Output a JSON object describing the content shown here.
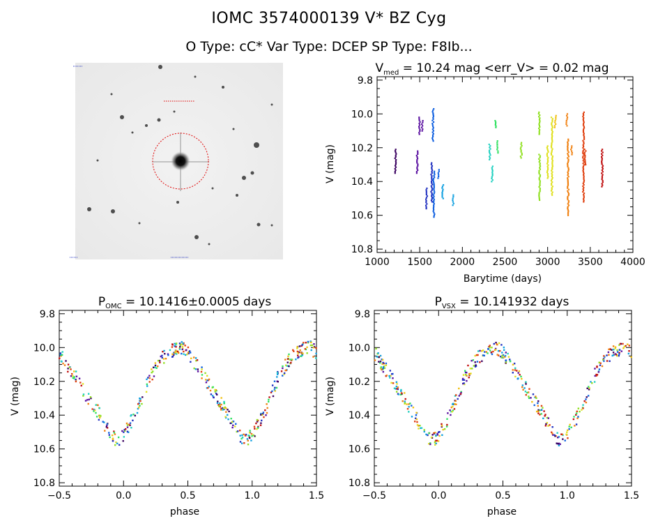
{
  "header": {
    "line1": "IOMC 3574000139    V* BZ Cyg",
    "line2": "O Type: cC*   Var Type: DCEP   SP Type: F8Ib..."
  },
  "sky_image": {
    "caption_top": "",
    "caption_bottom": ""
  },
  "colors": {
    "palette": [
      "#3a0060",
      "#5a10a0",
      "#2030c0",
      "#1060e0",
      "#10a0e0",
      "#20d0c0",
      "#30e060",
      "#90e020",
      "#e0e020",
      "#f0c010",
      "#f08010",
      "#e04010",
      "#c01010"
    ]
  },
  "chart_data": [
    {
      "type": "scatter",
      "id": "lightcurve",
      "title_main": "V",
      "title_sub": "med",
      "title_rest": " = 10.24 mag <err_V> = 0.02 mag",
      "xlabel": "Barytime (days)",
      "ylabel": "V (mag)",
      "xlim": [
        1000,
        4000
      ],
      "ylim": [
        10.82,
        9.78
      ],
      "xticks": [
        1000,
        1500,
        2000,
        2500,
        3000,
        3500,
        4000
      ],
      "xtick_labels": [
        "1000",
        "1500",
        "2000",
        "2500",
        "3000",
        "3500",
        "4000"
      ],
      "yticks": [
        9.8,
        10.0,
        10.2,
        10.4,
        10.6,
        10.8
      ],
      "ytick_labels": [
        "9.8",
        "10.0",
        "10.2",
        "10.4",
        "10.6",
        "10.8"
      ],
      "clusters": [
        {
          "t": 1215,
          "ymin": 10.21,
          "ymax": 10.35,
          "c": 0
        },
        {
          "t": 1470,
          "ymin": 10.22,
          "ymax": 10.35,
          "c": 1
        },
        {
          "t": 1495,
          "ymin": 10.02,
          "ymax": 10.12,
          "c": 1
        },
        {
          "t": 1530,
          "ymin": 10.04,
          "ymax": 10.1,
          "c": 1
        },
        {
          "t": 1580,
          "ymin": 10.44,
          "ymax": 10.56,
          "c": 2
        },
        {
          "t": 1640,
          "ymin": 10.29,
          "ymax": 10.52,
          "c": 2
        },
        {
          "t": 1655,
          "ymin": 9.97,
          "ymax": 10.16,
          "c": 3
        },
        {
          "t": 1665,
          "ymin": 10.34,
          "ymax": 10.61,
          "c": 3
        },
        {
          "t": 1720,
          "ymin": 10.33,
          "ymax": 10.38,
          "c": 3
        },
        {
          "t": 1770,
          "ymin": 10.42,
          "ymax": 10.5,
          "c": 4
        },
        {
          "t": 1890,
          "ymin": 10.48,
          "ymax": 10.54,
          "c": 4
        },
        {
          "t": 2320,
          "ymin": 10.18,
          "ymax": 10.27,
          "c": 5
        },
        {
          "t": 2350,
          "ymin": 10.31,
          "ymax": 10.4,
          "c": 5
        },
        {
          "t": 2390,
          "ymin": 10.04,
          "ymax": 10.08,
          "c": 6
        },
        {
          "t": 2410,
          "ymin": 10.16,
          "ymax": 10.23,
          "c": 6
        },
        {
          "t": 2690,
          "ymin": 10.17,
          "ymax": 10.26,
          "c": 7
        },
        {
          "t": 2900,
          "ymin": 9.99,
          "ymax": 10.12,
          "c": 7
        },
        {
          "t": 2905,
          "ymin": 10.24,
          "ymax": 10.51,
          "c": 7
        },
        {
          "t": 3000,
          "ymin": 10.19,
          "ymax": 10.38,
          "c": 8
        },
        {
          "t": 3050,
          "ymin": 10.02,
          "ymax": 10.48,
          "c": 8
        },
        {
          "t": 3090,
          "ymin": 10.01,
          "ymax": 10.08,
          "c": 9
        },
        {
          "t": 3225,
          "ymin": 10.0,
          "ymax": 10.07,
          "c": 10
        },
        {
          "t": 3240,
          "ymin": 10.15,
          "ymax": 10.6,
          "c": 10
        },
        {
          "t": 3280,
          "ymin": 10.19,
          "ymax": 10.24,
          "c": 10
        },
        {
          "t": 3420,
          "ymin": 9.99,
          "ymax": 10.52,
          "c": 11
        },
        {
          "t": 3440,
          "ymin": 10.21,
          "ymax": 10.3,
          "c": 11
        },
        {
          "t": 3640,
          "ymin": 10.21,
          "ymax": 10.43,
          "c": 12
        }
      ]
    },
    {
      "type": "scatter",
      "id": "phase_omc",
      "title_main": "P",
      "title_sub": "OMC",
      "title_rest": " = 10.1416±0.0005 days",
      "xlabel": "phase",
      "ylabel": "V (mag)",
      "xlim": [
        -0.5,
        1.5
      ],
      "ylim": [
        10.82,
        9.78
      ],
      "xticks": [
        -0.5,
        0.0,
        0.5,
        1.0,
        1.5
      ],
      "xtick_labels": [
        "−0.5",
        "0.0",
        "0.5",
        "1.0",
        "1.5"
      ],
      "yticks": [
        9.8,
        10.0,
        10.2,
        10.4,
        10.6,
        10.8
      ],
      "ytick_labels": [
        "9.8",
        "10.0",
        "10.2",
        "10.4",
        "10.6",
        "10.8"
      ],
      "curve": [
        [
          0.0,
          10.52
        ],
        [
          0.1,
          10.38
        ],
        [
          0.2,
          10.18
        ],
        [
          0.3,
          10.06
        ],
        [
          0.4,
          10.01
        ],
        [
          0.45,
          10.0
        ],
        [
          0.5,
          10.03
        ],
        [
          0.6,
          10.14
        ],
        [
          0.7,
          10.27
        ],
        [
          0.8,
          10.38
        ],
        [
          0.85,
          10.45
        ],
        [
          0.9,
          10.52
        ],
        [
          0.95,
          10.55
        ],
        [
          1.0,
          10.52
        ]
      ]
    },
    {
      "type": "scatter",
      "id": "phase_vsx",
      "title_main": "P",
      "title_sub": "VSX",
      "title_rest": " = 10.141932 days",
      "xlabel": "phase",
      "ylabel": "V (mag)",
      "xlim": [
        -0.5,
        1.5
      ],
      "ylim": [
        10.82,
        9.78
      ],
      "xticks": [
        -0.5,
        0.0,
        0.5,
        1.0,
        1.5
      ],
      "xtick_labels": [
        "−0.5",
        "0.0",
        "0.5",
        "1.0",
        "1.5"
      ],
      "yticks": [
        9.8,
        10.0,
        10.2,
        10.4,
        10.6,
        10.8
      ],
      "ytick_labels": [
        "9.8",
        "10.0",
        "10.2",
        "10.4",
        "10.6",
        "10.8"
      ],
      "curve": [
        [
          0.0,
          10.52
        ],
        [
          0.1,
          10.38
        ],
        [
          0.2,
          10.18
        ],
        [
          0.3,
          10.06
        ],
        [
          0.4,
          10.01
        ],
        [
          0.45,
          10.0
        ],
        [
          0.5,
          10.03
        ],
        [
          0.6,
          10.14
        ],
        [
          0.7,
          10.27
        ],
        [
          0.8,
          10.38
        ],
        [
          0.85,
          10.45
        ],
        [
          0.9,
          10.52
        ],
        [
          0.95,
          10.55
        ],
        [
          1.0,
          10.52
        ]
      ]
    }
  ]
}
